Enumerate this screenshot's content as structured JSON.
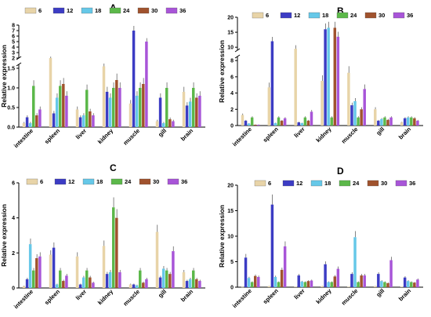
{
  "legend_labels": [
    "6",
    "12",
    "18",
    "24",
    "30",
    "36"
  ],
  "colors": [
    "#e8d4a8",
    "#3c3cc4",
    "#66c8e8",
    "#5cb84a",
    "#a0522d",
    "#a855d8"
  ],
  "chart_data": [
    {
      "type": "bar",
      "title": "A",
      "ylabel": "Relative expression",
      "categories": [
        "intestine",
        "spleen",
        "liver",
        "kidney",
        "muscle",
        "gill",
        "brain"
      ],
      "axis": "broken",
      "ylim_lower": [
        0,
        1.6
      ],
      "ylim_upper": [
        2,
        8
      ],
      "yticks_lower": [
        "0.0",
        "0.5",
        "1.0",
        "1.5"
      ],
      "yticks_upper": [
        "2",
        "3",
        "4",
        "5",
        "6",
        "7",
        "8"
      ],
      "legend": "top",
      "series": [
        {
          "name": "6",
          "values": [
            0.1,
            2.0,
            0.45,
            1.55,
            0.6,
            0.15,
            0.9
          ]
        },
        {
          "name": "12",
          "values": [
            0.25,
            0.35,
            0.25,
            0.9,
            7.0,
            0.75,
            0.55
          ]
        },
        {
          "name": "18",
          "values": [
            0.1,
            0.75,
            0.3,
            0.75,
            0.8,
            0.1,
            0.65
          ]
        },
        {
          "name": "24",
          "values": [
            1.05,
            1.05,
            0.95,
            1.0,
            1.0,
            1.0,
            1.0
          ]
        },
        {
          "name": "30",
          "values": [
            0.3,
            1.1,
            0.4,
            1.2,
            1.1,
            0.2,
            0.75
          ]
        },
        {
          "name": "36",
          "values": [
            0.45,
            0.8,
            0.3,
            1.0,
            5.0,
            0.15,
            0.8
          ]
        }
      ]
    },
    {
      "type": "bar",
      "title": "B",
      "ylabel": "Relative expression",
      "categories": [
        "intestine",
        "spleen",
        "liver",
        "kidney",
        "muscle",
        "gill",
        "brain"
      ],
      "axis": "broken",
      "ylim_lower": [
        0,
        8.5
      ],
      "ylim_upper": [
        9,
        20
      ],
      "yticks_lower": [
        "0",
        "2",
        "4",
        "6",
        "8"
      ],
      "yticks_upper": [
        "10",
        "15",
        "20"
      ],
      "legend": "top",
      "series": [
        {
          "name": "6",
          "values": [
            1.3,
            4.7,
            9.5,
            5.5,
            6.5,
            2.0,
            0.4
          ]
        },
        {
          "name": "12",
          "values": [
            0.6,
            12.0,
            0.4,
            16.0,
            2.5,
            0.6,
            0.9
          ]
        },
        {
          "name": "18",
          "values": [
            0.25,
            0.3,
            0.3,
            16.5,
            3.0,
            0.8,
            1.0
          ]
        },
        {
          "name": "24",
          "values": [
            1.0,
            1.0,
            1.0,
            1.0,
            1.0,
            1.0,
            1.0
          ]
        },
        {
          "name": "30",
          "values": [
            0.1,
            0.6,
            0.6,
            16.5,
            2.0,
            0.7,
            0.9
          ]
        },
        {
          "name": "36",
          "values": [
            0.1,
            0.9,
            1.7,
            13.5,
            4.5,
            1.0,
            0.6
          ]
        }
      ]
    },
    {
      "type": "bar",
      "title": "C",
      "ylabel": "Relative expression",
      "categories": [
        "intestine",
        "spleen",
        "liver",
        "kidney",
        "muscle",
        "gill",
        "brain"
      ],
      "axis": "linear",
      "ylim": [
        0,
        6
      ],
      "yticks": [
        "0",
        "2",
        "4",
        "6"
      ],
      "legend": "top",
      "series": [
        {
          "name": "6",
          "values": [
            0.1,
            1.9,
            1.8,
            2.4,
            0.2,
            3.2,
            0.9
          ]
        },
        {
          "name": "12",
          "values": [
            0.5,
            2.3,
            0.2,
            0.8,
            0.2,
            0.6,
            0.4
          ]
        },
        {
          "name": "18",
          "values": [
            2.5,
            0.2,
            0.6,
            0.9,
            0.15,
            1.1,
            0.5
          ]
        },
        {
          "name": "24",
          "values": [
            1.0,
            1.0,
            1.0,
            4.6,
            1.0,
            1.0,
            1.0
          ]
        },
        {
          "name": "30",
          "values": [
            1.7,
            0.4,
            0.6,
            4.0,
            0.3,
            0.8,
            0.5
          ]
        },
        {
          "name": "36",
          "values": [
            1.8,
            0.7,
            0.3,
            0.9,
            0.5,
            2.1,
            0.4
          ]
        }
      ]
    },
    {
      "type": "bar",
      "title": "D",
      "ylabel": "Relative expression",
      "categories": [
        "intestine",
        "spleen",
        "liver",
        "kidney",
        "muscle",
        "gill",
        "brain"
      ],
      "axis": "linear",
      "ylim": [
        0,
        20
      ],
      "yticks": [
        "0",
        "5",
        "10",
        "15",
        "20"
      ],
      "legend": "top",
      "series": [
        {
          "name": "6",
          "values": [
            0.05,
            0.2,
            0.1,
            0.2,
            0.1,
            0.2,
            0.1
          ]
        },
        {
          "name": "12",
          "values": [
            5.8,
            16.2,
            2.3,
            4.5,
            2.6,
            2.6,
            1.9
          ]
        },
        {
          "name": "18",
          "values": [
            1.8,
            2.0,
            1.1,
            1.0,
            9.8,
            1.2,
            1.2
          ]
        },
        {
          "name": "24",
          "values": [
            1.0,
            1.0,
            1.0,
            1.0,
            1.0,
            1.0,
            1.0
          ]
        },
        {
          "name": "30",
          "values": [
            2.2,
            3.4,
            1.2,
            2.1,
            2.3,
            0.8,
            0.9
          ]
        },
        {
          "name": "36",
          "values": [
            2.0,
            8.0,
            1.3,
            3.6,
            2.3,
            5.3,
            1.5
          ]
        }
      ]
    }
  ]
}
